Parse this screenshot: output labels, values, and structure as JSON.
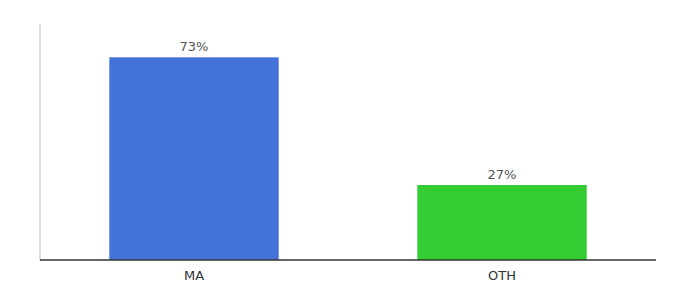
{
  "chart_data": {
    "type": "bar",
    "categories": [
      "MA",
      "OTH"
    ],
    "values": [
      73,
      27
    ],
    "value_labels": [
      "73%",
      "27%"
    ],
    "colors": [
      "#4472db",
      "#33cc33"
    ],
    "ylim": [
      0,
      85
    ],
    "data_labels": true,
    "tick_labels": "x"
  }
}
